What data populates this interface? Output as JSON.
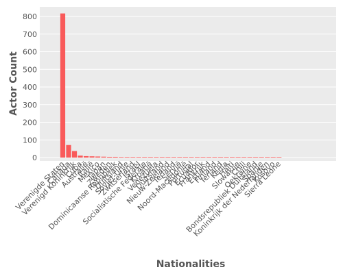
{
  "chart_data": {
    "type": "bar",
    "xlabel": "Nationalities",
    "ylabel": "Actor Count",
    "ylim": [
      0,
      850
    ],
    "grid": true,
    "y_ticks": [
      0,
      100,
      200,
      300,
      400,
      500,
      600,
      700,
      800
    ],
    "categories": [
      "Verenigde Staten",
      "Canada",
      "Verenigd Koninkrijk",
      "Cuba",
      "Australië",
      "Italië",
      "Mexico",
      "Japan",
      "Zweden",
      "Dominicaanse Republiek",
      "Duitsland",
      "Sovjet-Unie",
      "Zwitserland",
      "Israël",
      "Socialistische Federale",
      "Kroatië",
      "Venezuela",
      "Duitsland",
      "Nieuw-Zeeland",
      "Ierland",
      "Servië",
      "Noord-Macedonië",
      "Portugal",
      "Ecuador",
      "Frankrijk",
      "Estland",
      "Finland",
      "Ierland",
      "Kenia",
      "Haïti",
      "Slowakije",
      "Chili",
      "Oekraïne",
      "Bondsrepubliek Duitsland",
      "Spanje",
      "Koninkrijk der Nederlanden",
      "Kosovo",
      "Sierra Leone"
    ],
    "values": [
      817,
      71,
      37,
      11,
      8,
      7,
      6,
      5,
      4,
      4,
      3,
      3,
      3,
      3,
      3,
      2,
      2,
      2,
      2,
      2,
      2,
      1,
      1,
      1,
      1,
      1,
      1,
      1,
      1,
      1,
      1,
      1,
      1,
      1,
      1,
      1,
      1,
      1
    ],
    "colors": {
      "bar": "#f95a5a",
      "panel": "#ebebeb",
      "grid": "#ffffff",
      "text": "#555555"
    }
  }
}
